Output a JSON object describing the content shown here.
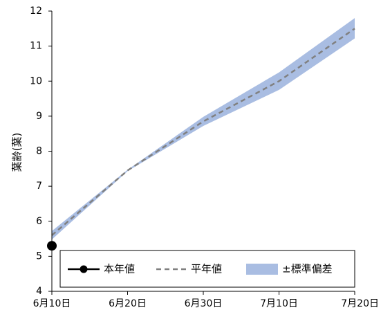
{
  "chart_data": {
    "type": "line",
    "ylabel": "葉齢(葉)",
    "xlabel": "",
    "title": "",
    "ylim": [
      4,
      12
    ],
    "y_ticks": [
      4,
      5,
      6,
      7,
      8,
      9,
      10,
      11,
      12
    ],
    "categories": [
      "6月10日",
      "6月20日",
      "6月30日",
      "7月10日",
      "7月20日"
    ],
    "grid": false,
    "legend_position": "bottom",
    "series": [
      {
        "name": "本年値",
        "style": "solid-marker",
        "color": "#000000",
        "points": [
          {
            "x": "6月10日",
            "y": 5.3
          }
        ]
      },
      {
        "name": "平年値",
        "style": "dashed",
        "color": "#808080",
        "points": [
          {
            "x": "6月10日",
            "y": 5.6
          },
          {
            "x": "6月20日",
            "y": 7.45
          },
          {
            "x": "6月30日",
            "y": 8.85
          },
          {
            "x": "7月10日",
            "y": 10.0
          },
          {
            "x": "7月20日",
            "y": 11.5
          }
        ]
      },
      {
        "name": "±標準偏差",
        "style": "band",
        "color": "#a9bde2",
        "upper": [
          5.72,
          7.47,
          8.98,
          10.25,
          11.8
        ],
        "lower": [
          5.48,
          7.43,
          8.72,
          9.75,
          11.22
        ]
      }
    ]
  }
}
